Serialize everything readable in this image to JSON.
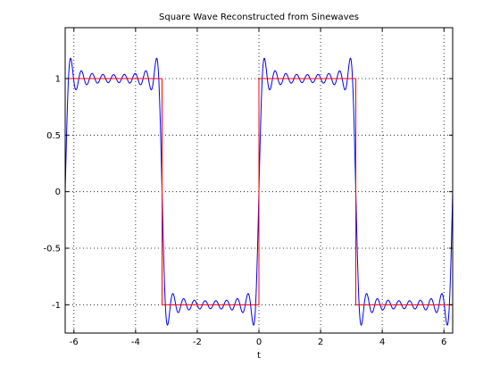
{
  "chart_data": {
    "type": "line",
    "title": "Square Wave Reconstructed from Sinewaves",
    "xlabel": "t",
    "ylabel": "",
    "xlim": [
      -6.2832,
      6.2832
    ],
    "ylim": [
      -1.25,
      1.45
    ],
    "grid": true,
    "x_ticks": [
      -6,
      -4,
      -2,
      0,
      2,
      4,
      6
    ],
    "x_tick_labels": [
      "-6",
      "-4",
      "-2",
      "0",
      "2",
      "4",
      "6"
    ],
    "y_ticks": [
      -1,
      -0.5,
      0,
      0.5,
      1
    ],
    "y_tick_labels": [
      "-1",
      "-0.5",
      "0",
      "0.5",
      "1"
    ],
    "series": [
      {
        "kind": "fourier-sum",
        "color": "#0000ff",
        "harmonics": [
          1,
          3,
          5,
          7,
          9,
          11,
          13,
          15,
          17
        ],
        "amplitude_scale": 1.2732,
        "x_range": [
          -6.2832,
          6.2832
        ]
      },
      {
        "kind": "step",
        "color": "#ff0000",
        "x": [
          -6.2832,
          -3.1416,
          -3.1416,
          0,
          0,
          3.1416,
          3.1416,
          6.2832
        ],
        "y": [
          1,
          1,
          -1,
          -1,
          1,
          1,
          -1,
          -1
        ]
      }
    ]
  }
}
